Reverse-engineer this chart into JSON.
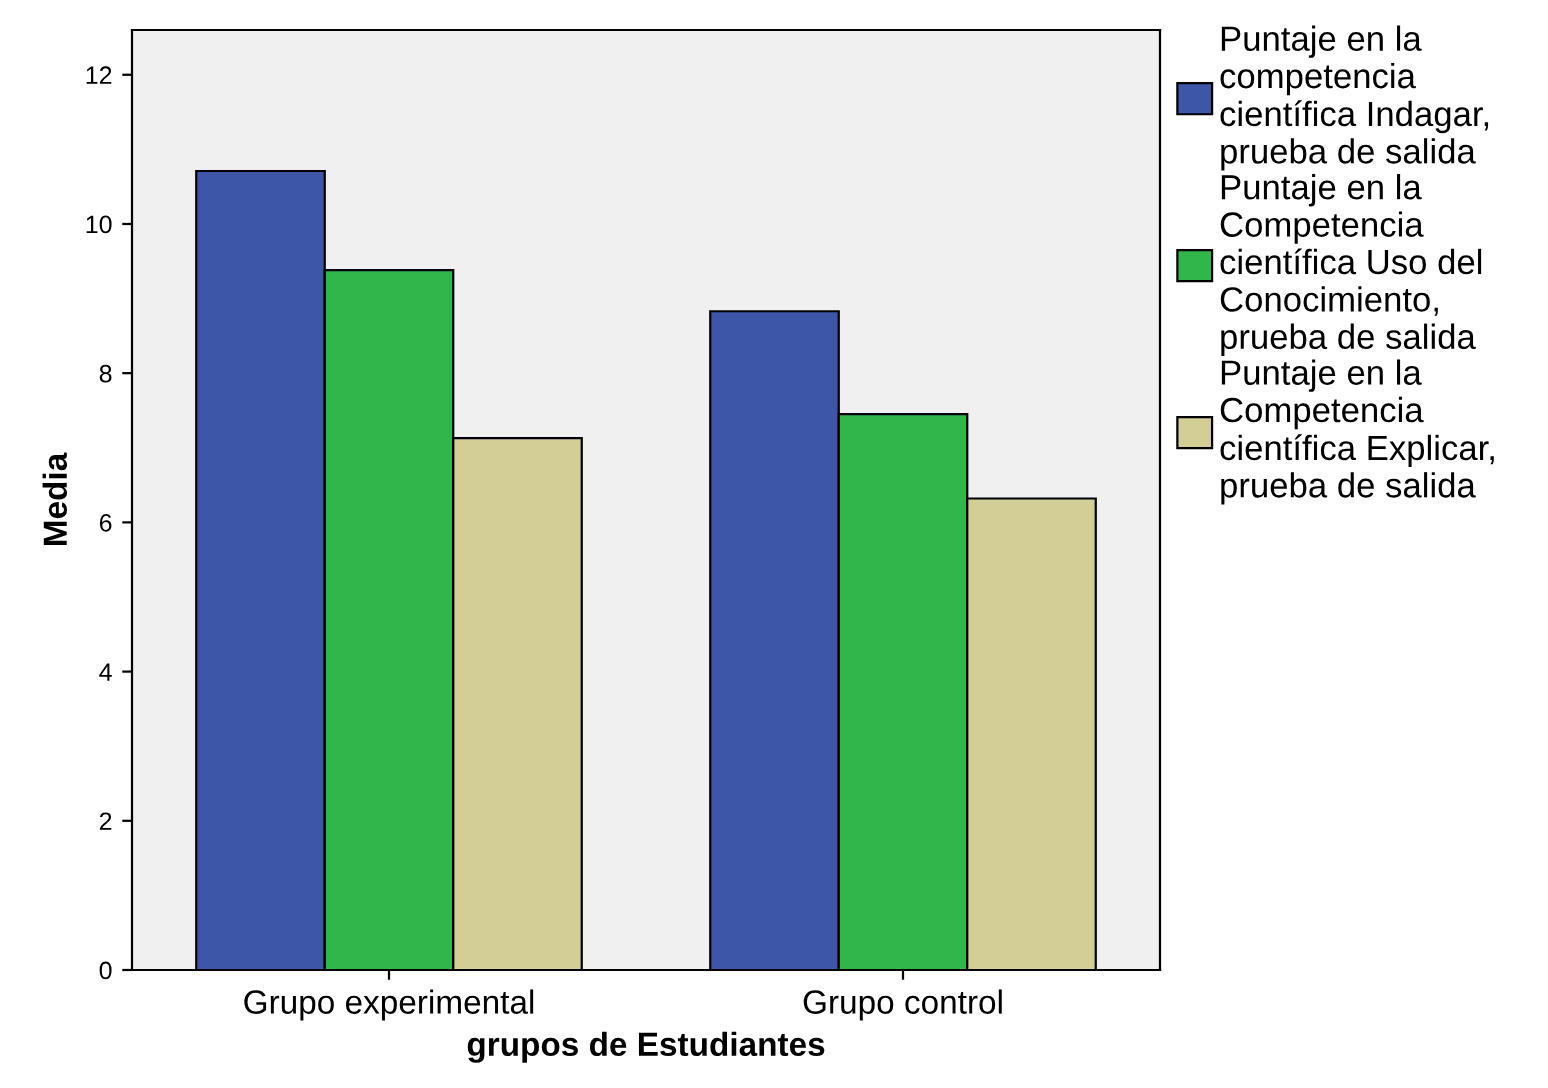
{
  "chart_data": {
    "type": "bar",
    "xlabel": "grupos de Estudiantes",
    "ylabel": "Media",
    "categories": [
      "Grupo experimental",
      "Grupo control"
    ],
    "series": [
      {
        "name": "Puntaje en la\ncompetencia\ncientífica Indagar,\nprueba de salida",
        "color": "#3d56a8",
        "values": [
          10.71,
          8.83
        ]
      },
      {
        "name": "Puntaje en la\nCompetencia\ncientífica Uso del\nConocimiento,\nprueba de salida",
        "color": "#30b74a",
        "values": [
          9.38,
          7.45
        ]
      },
      {
        "name": "Puntaje en la\nCompetencia\ncientífica Explicar,\nprueba de salida",
        "color": "#d3ce96",
        "values": [
          7.13,
          6.32
        ]
      }
    ],
    "ylim": [
      0,
      12.6
    ],
    "yticks": [
      0,
      2,
      4,
      6,
      8,
      10,
      12
    ],
    "grid": false,
    "legend": "right"
  }
}
